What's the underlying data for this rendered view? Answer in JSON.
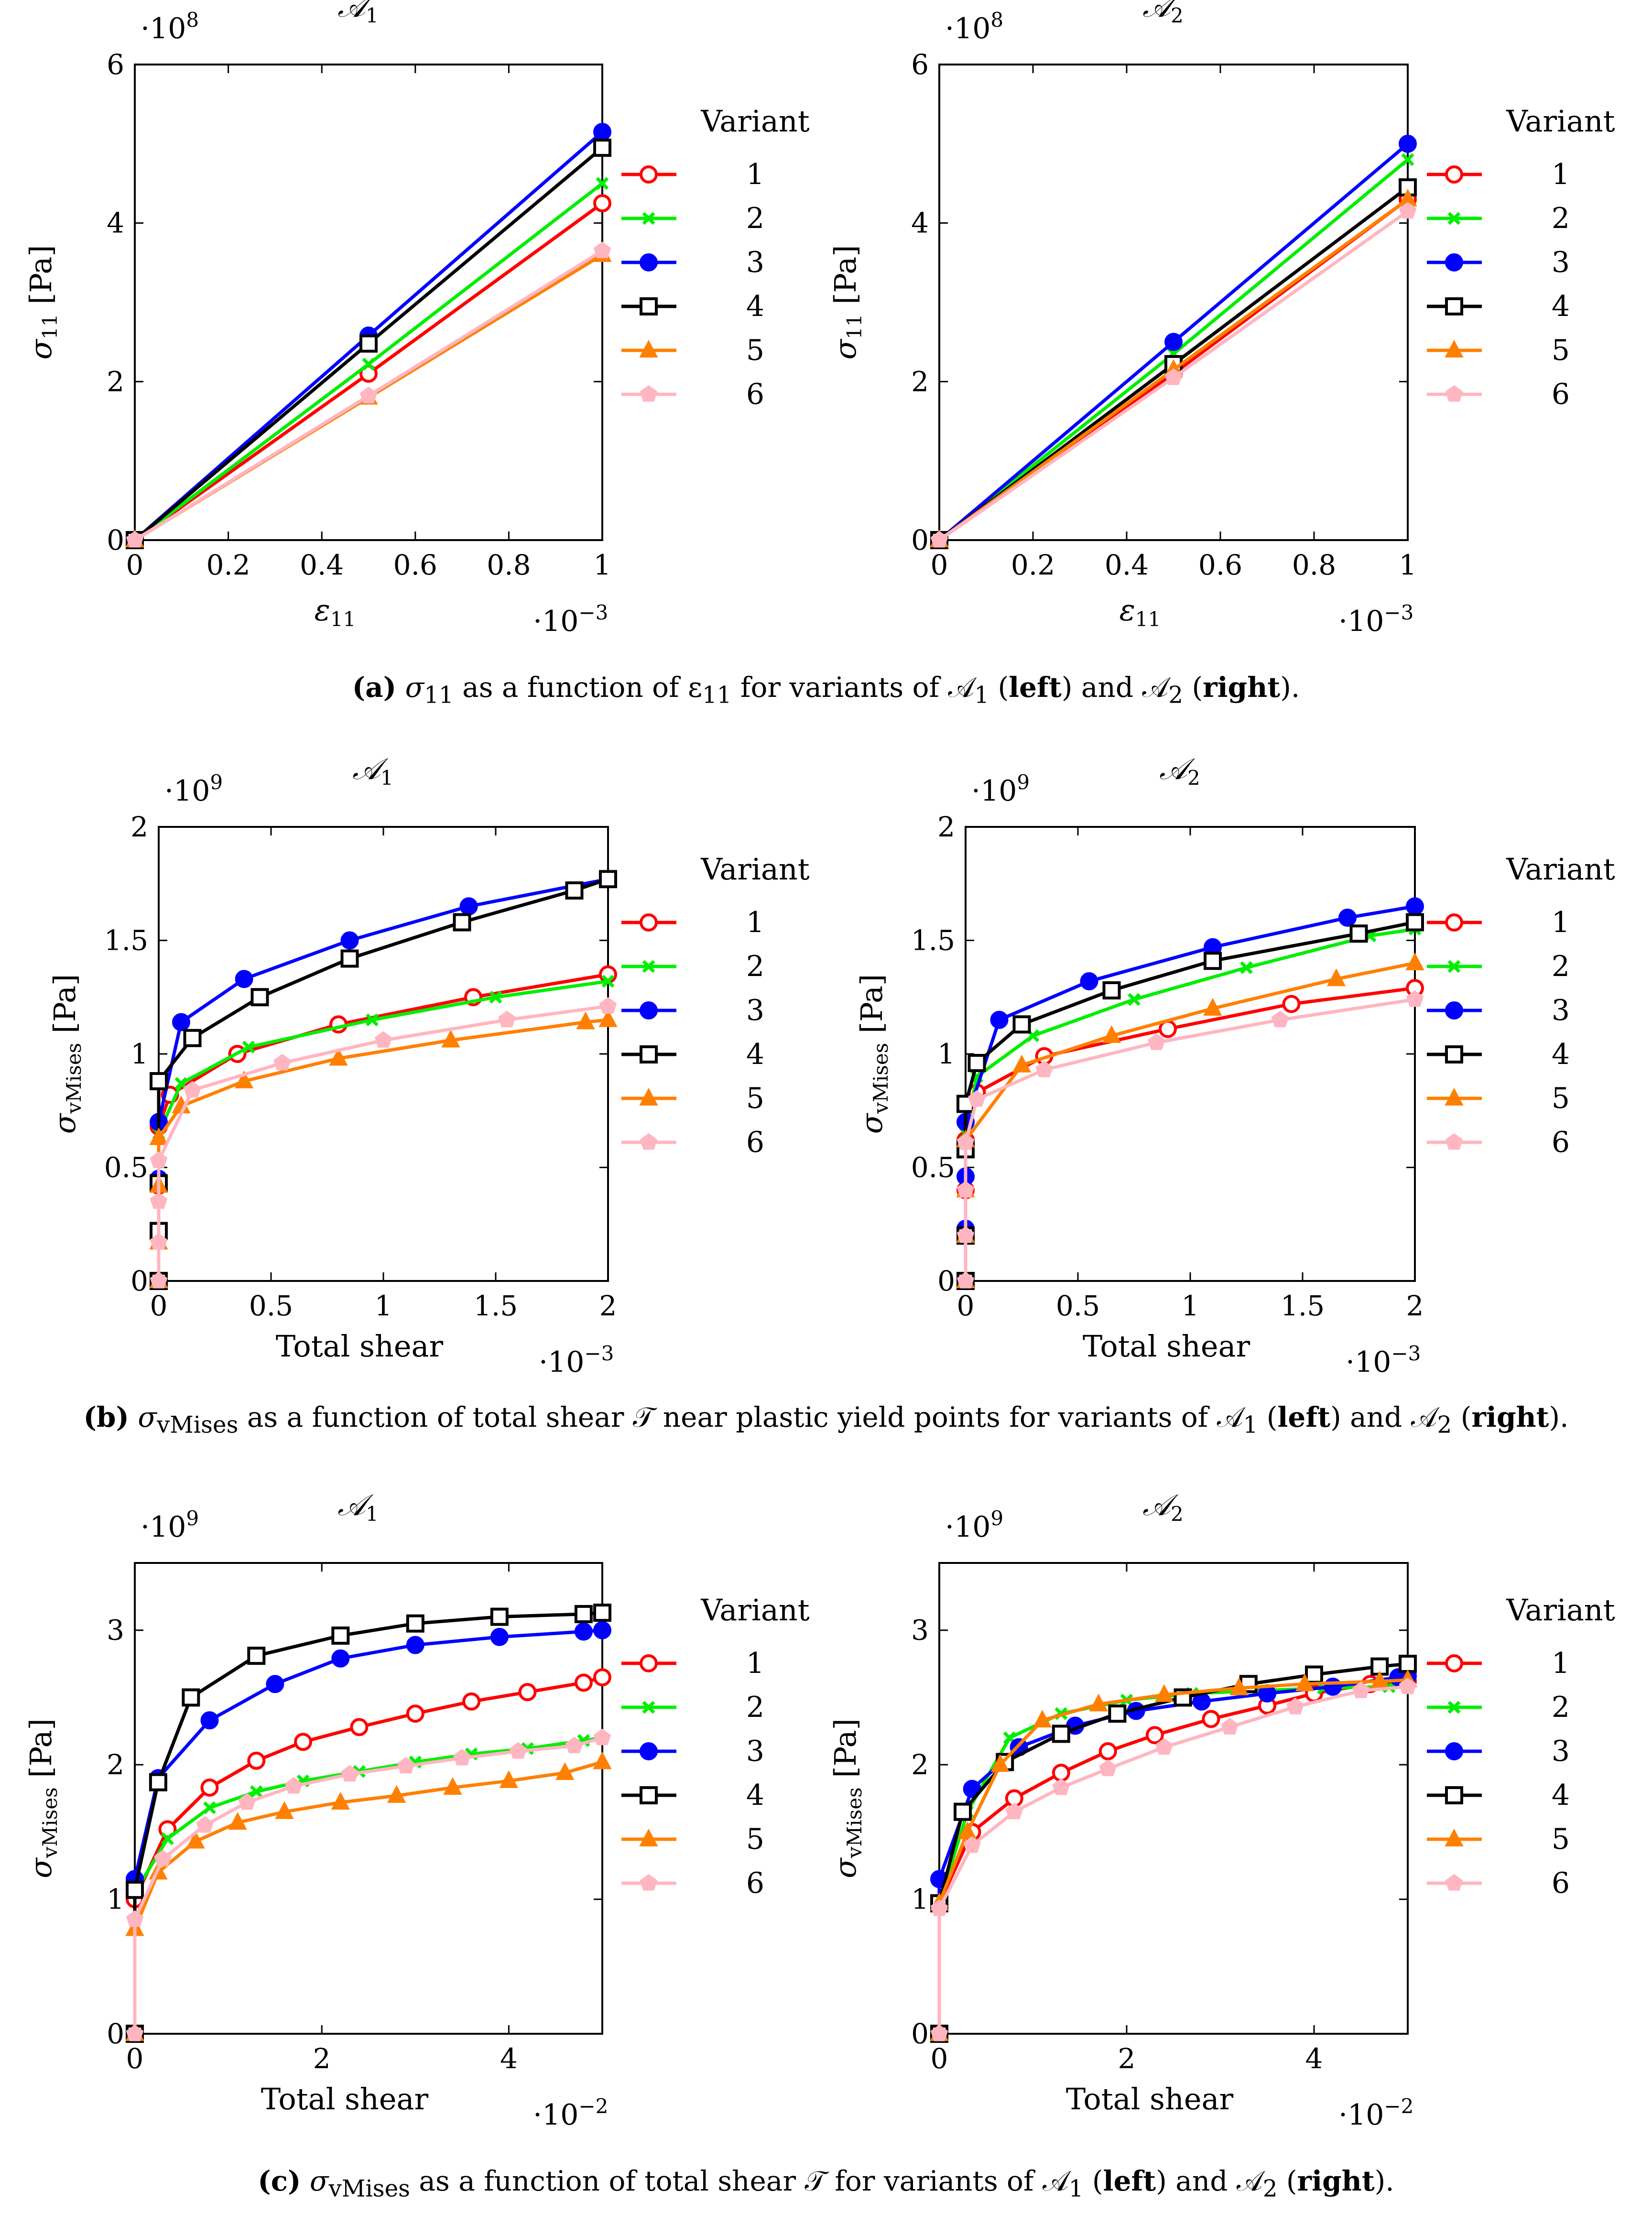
{
  "legend_title": "Variant",
  "series_names": [
    "1",
    "2",
    "3",
    "4",
    "5",
    "6"
  ],
  "colors": [
    "#ff0000",
    "#00ee00",
    "#0000ff",
    "#000000",
    "#ff8000",
    "#ffb6c1"
  ],
  "markers": [
    "circle-open",
    "cross",
    "circle-filled",
    "square-open",
    "triangle-filled",
    "pentagon-filled"
  ],
  "captions": [
    {
      "label": "(a)",
      "pre": " σ",
      "sub": "11",
      "mid": " as a function of ε",
      "sub2": "11",
      "rest": " for variants of 𝒜",
      "s3": "1",
      "left": "left",
      "and": " and 𝒜",
      "s4": "2",
      "right": "right",
      "end": ")."
    },
    {
      "label": "(b)",
      "pre": " σ",
      "sub": "vMises",
      "mid": " as a function of total shear 𝒯 near plastic yield points for variants of 𝒜",
      "s3": "1",
      "left": "left",
      "and": " and 𝒜",
      "s4": "2",
      "right": "right",
      "end": ")."
    },
    {
      "label": "(c)",
      "pre": " σ",
      "sub": "vMises",
      "mid": " as a function of total shear 𝒯 for variants of 𝒜",
      "s3": "1",
      "left": "left",
      "and": " and 𝒜",
      "s4": "2",
      "right": "right",
      "end": ")."
    }
  ],
  "chart_data": [
    {
      "type": "line",
      "title": "𝒜",
      "title_sub": "1",
      "ylabel": "σ",
      "ylabel_sub": "11",
      "ylabel_unit": " [Pa]",
      "xlabel": "ε",
      "xlabel_sub": "11",
      "xlim": [
        0,
        1
      ],
      "ylim": [
        0,
        6
      ],
      "xticks": [
        "0",
        "0.2",
        "0.4",
        "0.6",
        "0.8",
        "1"
      ],
      "yticks": [
        "0",
        "2",
        "4",
        "6"
      ],
      "x_scale_base": "·10",
      "x_scale_exp": "−3",
      "y_scale_base": "·10",
      "y_scale_exp": "8",
      "series": [
        {
          "name": "1",
          "x": [
            0,
            0.5,
            1
          ],
          "y": [
            0,
            2.1,
            4.25
          ]
        },
        {
          "name": "2",
          "x": [
            0,
            0.5,
            1
          ],
          "y": [
            0,
            2.22,
            4.5
          ]
        },
        {
          "name": "3",
          "x": [
            0,
            0.5,
            1
          ],
          "y": [
            0,
            2.58,
            5.15
          ]
        },
        {
          "name": "4",
          "x": [
            0,
            0.5,
            1
          ],
          "y": [
            0,
            2.48,
            4.95
          ]
        },
        {
          "name": "5",
          "x": [
            0,
            0.5,
            1
          ],
          "y": [
            0,
            1.8,
            3.6
          ]
        },
        {
          "name": "6",
          "x": [
            0,
            0.5,
            1
          ],
          "y": [
            0,
            1.82,
            3.65
          ]
        }
      ]
    },
    {
      "type": "line",
      "title": "𝒜",
      "title_sub": "2",
      "ylabel": "σ",
      "ylabel_sub": "11",
      "ylabel_unit": " [Pa]",
      "xlabel": "ε",
      "xlabel_sub": "11",
      "xlim": [
        0,
        1
      ],
      "ylim": [
        0,
        6
      ],
      "xticks": [
        "0",
        "0.2",
        "0.4",
        "0.6",
        "0.8",
        "1"
      ],
      "yticks": [
        "0",
        "2",
        "4",
        "6"
      ],
      "x_scale_base": "·10",
      "x_scale_exp": "−3",
      "y_scale_base": "·10",
      "y_scale_exp": "8",
      "series": [
        {
          "name": "1",
          "x": [
            0,
            0.5,
            1
          ],
          "y": [
            0,
            2.1,
            4.3
          ]
        },
        {
          "name": "2",
          "x": [
            0,
            0.5,
            1
          ],
          "y": [
            0,
            2.35,
            4.8
          ]
        },
        {
          "name": "3",
          "x": [
            0,
            0.5,
            1
          ],
          "y": [
            0,
            2.5,
            5.0
          ]
        },
        {
          "name": "4",
          "x": [
            0,
            0.5,
            1
          ],
          "y": [
            0,
            2.22,
            4.45
          ]
        },
        {
          "name": "5",
          "x": [
            0,
            0.5,
            1
          ],
          "y": [
            0,
            2.15,
            4.3
          ]
        },
        {
          "name": "6",
          "x": [
            0,
            0.5,
            1
          ],
          "y": [
            0,
            2.05,
            4.15
          ]
        }
      ]
    },
    {
      "type": "line",
      "title": "𝒜",
      "title_sub": "1",
      "ylabel": "σ",
      "ylabel_sub": "vMises",
      "ylabel_unit": " [Pa]",
      "xlabel": "Total shear",
      "xlabel_sub": "",
      "xlim": [
        0,
        2
      ],
      "ylim": [
        0,
        2
      ],
      "xticks": [
        "0",
        "0.5",
        "1",
        "1.5",
        "2"
      ],
      "yticks": [
        "0",
        "0.5",
        "1",
        "1.5",
        "2"
      ],
      "x_scale_base": "·10",
      "x_scale_exp": "−3",
      "y_scale_base": "·10",
      "y_scale_exp": "9",
      "series": [
        {
          "name": "1",
          "x": [
            0,
            0,
            0,
            0,
            0.05,
            0.35,
            0.8,
            1.4,
            2
          ],
          "y": [
            0,
            0.2,
            0.42,
            0.68,
            0.82,
            1.0,
            1.13,
            1.25,
            1.35
          ]
        },
        {
          "name": "2",
          "x": [
            0,
            0,
            0,
            0,
            0.1,
            0.4,
            0.95,
            1.5,
            2
          ],
          "y": [
            0,
            0.2,
            0.43,
            0.65,
            0.87,
            1.03,
            1.15,
            1.25,
            1.32
          ]
        },
        {
          "name": "3",
          "x": [
            0,
            0,
            0,
            0,
            0.1,
            0.38,
            0.85,
            1.38,
            2
          ],
          "y": [
            0,
            0.22,
            0.45,
            0.7,
            1.14,
            1.33,
            1.5,
            1.65,
            1.77
          ]
        },
        {
          "name": "4",
          "x": [
            0,
            0,
            0,
            0,
            0.15,
            0.45,
            0.85,
            1.35,
            1.85,
            2
          ],
          "y": [
            0,
            0.22,
            0.43,
            0.88,
            1.07,
            1.25,
            1.42,
            1.58,
            1.72,
            1.77
          ]
        },
        {
          "name": "5",
          "x": [
            0,
            0,
            0,
            0,
            0.1,
            0.38,
            0.8,
            1.3,
            1.9,
            2
          ],
          "y": [
            0,
            0.17,
            0.42,
            0.63,
            0.77,
            0.88,
            0.98,
            1.06,
            1.14,
            1.15
          ]
        },
        {
          "name": "6",
          "x": [
            0,
            0,
            0,
            0,
            0.15,
            0.55,
            1.0,
            1.55,
            2
          ],
          "y": [
            0,
            0.17,
            0.35,
            0.53,
            0.84,
            0.96,
            1.06,
            1.15,
            1.21
          ]
        }
      ]
    },
    {
      "type": "line",
      "title": "𝒜",
      "title_sub": "2",
      "ylabel": "σ",
      "ylabel_sub": "vMises",
      "ylabel_unit": " [Pa]",
      "xlabel": "Total shear",
      "xlabel_sub": "",
      "xlim": [
        0,
        2
      ],
      "ylim": [
        0,
        2
      ],
      "xticks": [
        "0",
        "0.5",
        "1",
        "1.5",
        "2"
      ],
      "yticks": [
        "0",
        "0.5",
        "1",
        "1.5",
        "2"
      ],
      "x_scale_base": "·10",
      "x_scale_exp": "−3",
      "y_scale_base": "·10",
      "y_scale_exp": "9",
      "series": [
        {
          "name": "1",
          "x": [
            0,
            0,
            0,
            0,
            0.05,
            0.35,
            0.9,
            1.45,
            2
          ],
          "y": [
            0,
            0.2,
            0.4,
            0.62,
            0.83,
            0.99,
            1.11,
            1.22,
            1.29
          ]
        },
        {
          "name": "2",
          "x": [
            0,
            0,
            0,
            0,
            0.05,
            0.3,
            0.75,
            1.25,
            1.8,
            2
          ],
          "y": [
            0,
            0.2,
            0.42,
            0.65,
            0.9,
            1.08,
            1.24,
            1.38,
            1.52,
            1.55
          ]
        },
        {
          "name": "3",
          "x": [
            0,
            0,
            0,
            0,
            0.15,
            0.55,
            1.1,
            1.7,
            2
          ],
          "y": [
            0,
            0.23,
            0.46,
            0.7,
            1.15,
            1.32,
            1.47,
            1.6,
            1.65
          ]
        },
        {
          "name": "4",
          "x": [
            0,
            0,
            0,
            0,
            0.05,
            0.25,
            0.65,
            1.1,
            1.75,
            2
          ],
          "y": [
            0,
            0.2,
            0.58,
            0.78,
            0.96,
            1.13,
            1.28,
            1.41,
            1.53,
            1.58
          ]
        },
        {
          "name": "5",
          "x": [
            0,
            0,
            0,
            0,
            0.25,
            0.65,
            1.1,
            1.65,
            2
          ],
          "y": [
            0,
            0.2,
            0.4,
            0.62,
            0.95,
            1.08,
            1.2,
            1.33,
            1.4
          ]
        },
        {
          "name": "6",
          "x": [
            0,
            0,
            0,
            0,
            0.05,
            0.35,
            0.85,
            1.4,
            2
          ],
          "y": [
            0,
            0.2,
            0.4,
            0.61,
            0.8,
            0.93,
            1.05,
            1.15,
            1.24
          ]
        }
      ]
    },
    {
      "type": "line",
      "title": "𝒜",
      "title_sub": "1",
      "ylabel": "σ",
      "ylabel_sub": "vMises",
      "ylabel_unit": " [Pa]",
      "xlabel": "Total shear",
      "xlabel_sub": "",
      "xlim": [
        0,
        5
      ],
      "ylim": [
        0,
        3.5
      ],
      "xticks": [
        "0",
        "2",
        "4"
      ],
      "ytick_values": [
        0,
        1,
        2,
        3
      ],
      "xtick_values": [
        0,
        2,
        4
      ],
      "yticks": [
        "0",
        "1",
        "2",
        "3"
      ],
      "x_scale_base": "·10",
      "x_scale_exp": "−2",
      "y_scale_base": "·10",
      "y_scale_exp": "9",
      "series": [
        {
          "name": "1",
          "x": [
            0,
            0,
            0.35,
            0.8,
            1.3,
            1.8,
            2.4,
            3.0,
            3.6,
            4.2,
            4.8,
            5.0
          ],
          "y": [
            0,
            1.0,
            1.52,
            1.83,
            2.03,
            2.17,
            2.28,
            2.38,
            2.47,
            2.54,
            2.61,
            2.65
          ]
        },
        {
          "name": "2",
          "x": [
            0,
            0,
            0.35,
            0.8,
            1.3,
            1.8,
            2.4,
            3.0,
            3.6,
            4.2,
            4.8,
            5.0
          ],
          "y": [
            0,
            1.05,
            1.45,
            1.68,
            1.8,
            1.88,
            1.95,
            2.02,
            2.08,
            2.12,
            2.18,
            2.2
          ]
        },
        {
          "name": "3",
          "x": [
            0,
            0,
            0.25,
            0.8,
            1.5,
            2.2,
            3.0,
            3.9,
            4.8,
            5.0
          ],
          "y": [
            0,
            1.15,
            1.9,
            2.33,
            2.6,
            2.79,
            2.89,
            2.95,
            2.99,
            3.0
          ]
        },
        {
          "name": "4",
          "x": [
            0,
            0,
            0.25,
            0.6,
            1.3,
            2.2,
            3.0,
            3.9,
            4.8,
            5.0
          ],
          "y": [
            0,
            1.07,
            1.87,
            2.5,
            2.81,
            2.96,
            3.05,
            3.1,
            3.12,
            3.13
          ]
        },
        {
          "name": "5",
          "x": [
            0,
            0,
            0.25,
            0.65,
            1.1,
            1.6,
            2.2,
            2.8,
            3.4,
            4.0,
            4.6,
            5.0
          ],
          "y": [
            0,
            0.78,
            1.2,
            1.43,
            1.57,
            1.65,
            1.72,
            1.77,
            1.83,
            1.88,
            1.94,
            2.02
          ]
        },
        {
          "name": "6",
          "x": [
            0,
            0,
            0.3,
            0.75,
            1.2,
            1.7,
            2.3,
            2.9,
            3.5,
            4.1,
            4.7,
            5.0
          ],
          "y": [
            0,
            0.85,
            1.3,
            1.55,
            1.72,
            1.84,
            1.93,
            1.99,
            2.05,
            2.1,
            2.14,
            2.2
          ]
        }
      ]
    },
    {
      "type": "line",
      "title": "𝒜",
      "title_sub": "2",
      "ylabel": "σ",
      "ylabel_sub": "vMises",
      "ylabel_unit": " [Pa]",
      "xlabel": "Total shear",
      "xlabel_sub": "",
      "xlim": [
        0,
        5
      ],
      "ylim": [
        0,
        3.5
      ],
      "xticks": [
        "0",
        "2",
        "4"
      ],
      "ytick_values": [
        0,
        1,
        2,
        3
      ],
      "xtick_values": [
        0,
        2,
        4
      ],
      "yticks": [
        "0",
        "1",
        "2",
        "3"
      ],
      "x_scale_base": "·10",
      "x_scale_exp": "−2",
      "y_scale_base": "·10",
      "y_scale_exp": "9",
      "series": [
        {
          "name": "1",
          "x": [
            0,
            0,
            0.35,
            0.8,
            1.3,
            1.8,
            2.3,
            2.9,
            3.5,
            4.0,
            4.6,
            5.0
          ],
          "y": [
            0,
            0.97,
            1.5,
            1.75,
            1.94,
            2.1,
            2.22,
            2.34,
            2.44,
            2.53,
            2.6,
            2.62
          ]
        },
        {
          "name": "2",
          "x": [
            0,
            0,
            0.3,
            0.75,
            1.3,
            2.0,
            2.7,
            3.4,
            4.1,
            4.8,
            5.0
          ],
          "y": [
            0,
            0.97,
            1.65,
            2.2,
            2.38,
            2.48,
            2.53,
            2.55,
            2.57,
            2.58,
            2.6
          ]
        },
        {
          "name": "3",
          "x": [
            0,
            0,
            0.35,
            0.85,
            1.45,
            2.1,
            2.8,
            3.5,
            4.2,
            4.9,
            5.0
          ],
          "y": [
            0,
            1.15,
            1.82,
            2.13,
            2.29,
            2.4,
            2.47,
            2.53,
            2.58,
            2.65,
            2.66
          ]
        },
        {
          "name": "4",
          "x": [
            0,
            0,
            0.25,
            0.7,
            1.3,
            1.9,
            2.6,
            3.3,
            4.0,
            4.7,
            5.0
          ],
          "y": [
            0,
            0.97,
            1.65,
            2.02,
            2.23,
            2.38,
            2.5,
            2.6,
            2.67,
            2.73,
            2.75
          ]
        },
        {
          "name": "5",
          "x": [
            0,
            0,
            0.3,
            0.65,
            1.1,
            1.7,
            2.4,
            3.2,
            3.9,
            4.7,
            5.0
          ],
          "y": [
            0,
            0.97,
            1.5,
            2.0,
            2.33,
            2.45,
            2.52,
            2.57,
            2.6,
            2.62,
            2.63
          ]
        },
        {
          "name": "6",
          "x": [
            0,
            0,
            0.35,
            0.8,
            1.3,
            1.8,
            2.4,
            3.1,
            3.8,
            4.5,
            5.0
          ],
          "y": [
            0,
            0.93,
            1.4,
            1.65,
            1.83,
            1.97,
            2.13,
            2.28,
            2.43,
            2.55,
            2.58
          ]
        }
      ]
    }
  ]
}
